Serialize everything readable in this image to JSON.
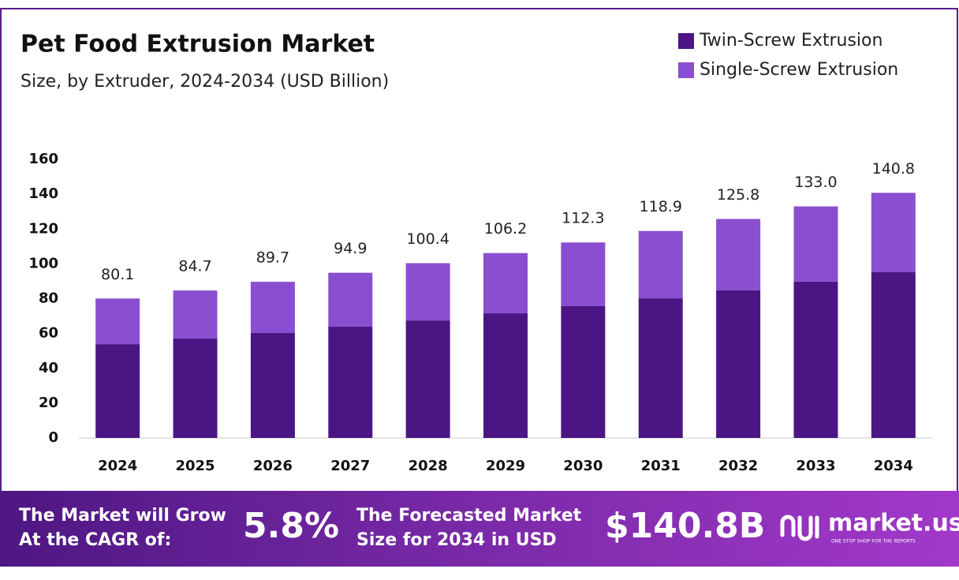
{
  "chart_data": {
    "type": "stacked_bar",
    "title": "Pet Food Extrusion Market",
    "subtitle": "Size, by Extruder, 2024-2034 (USD Billion)",
    "categories": [
      "2024",
      "2025",
      "2026",
      "2027",
      "2028",
      "2029",
      "2030",
      "2031",
      "2032",
      "2033",
      "2034"
    ],
    "series": [
      {
        "name": "Twin-Screw Extrusion",
        "color": "#4b1684",
        "values": [
          53.9,
          57.1,
          60.3,
          63.9,
          67.5,
          71.6,
          75.7,
          80.2,
          84.8,
          89.8,
          95.2
        ]
      },
      {
        "name": "Single-Screw Extrusion",
        "color": "#8a4fd0",
        "values": [
          26.2,
          27.6,
          29.4,
          31.0,
          32.9,
          34.6,
          36.6,
          38.7,
          41.0,
          43.2,
          45.6
        ]
      }
    ],
    "totals": {
      "values": [
        80.1,
        84.7,
        89.7,
        94.9,
        100.4,
        106.2,
        112.3,
        118.9,
        125.8,
        133.0,
        140.8
      ],
      "value_labels": [
        "80.1",
        "84.7",
        "89.7",
        "94.9",
        "100.4",
        "106.2",
        "112.3",
        "118.9",
        "125.8",
        "133.0",
        "140.8"
      ]
    },
    "ylim": [
      0,
      160
    ],
    "yticks": [
      0,
      20,
      40,
      60,
      80,
      100,
      120,
      140,
      160
    ],
    "grid": false,
    "legend": "top-right"
  },
  "footer": {
    "cagr_text": [
      "The Market will Grow",
      "At the CAGR of:"
    ],
    "cagr": "5.8%",
    "forecast_text": [
      "The Forecasted Market",
      "Size for 2034 in USD"
    ],
    "forecast": "$140.8B",
    "brand": "market.us",
    "tagline": "ONE STOP SHOP FOR THE REPORTS"
  }
}
